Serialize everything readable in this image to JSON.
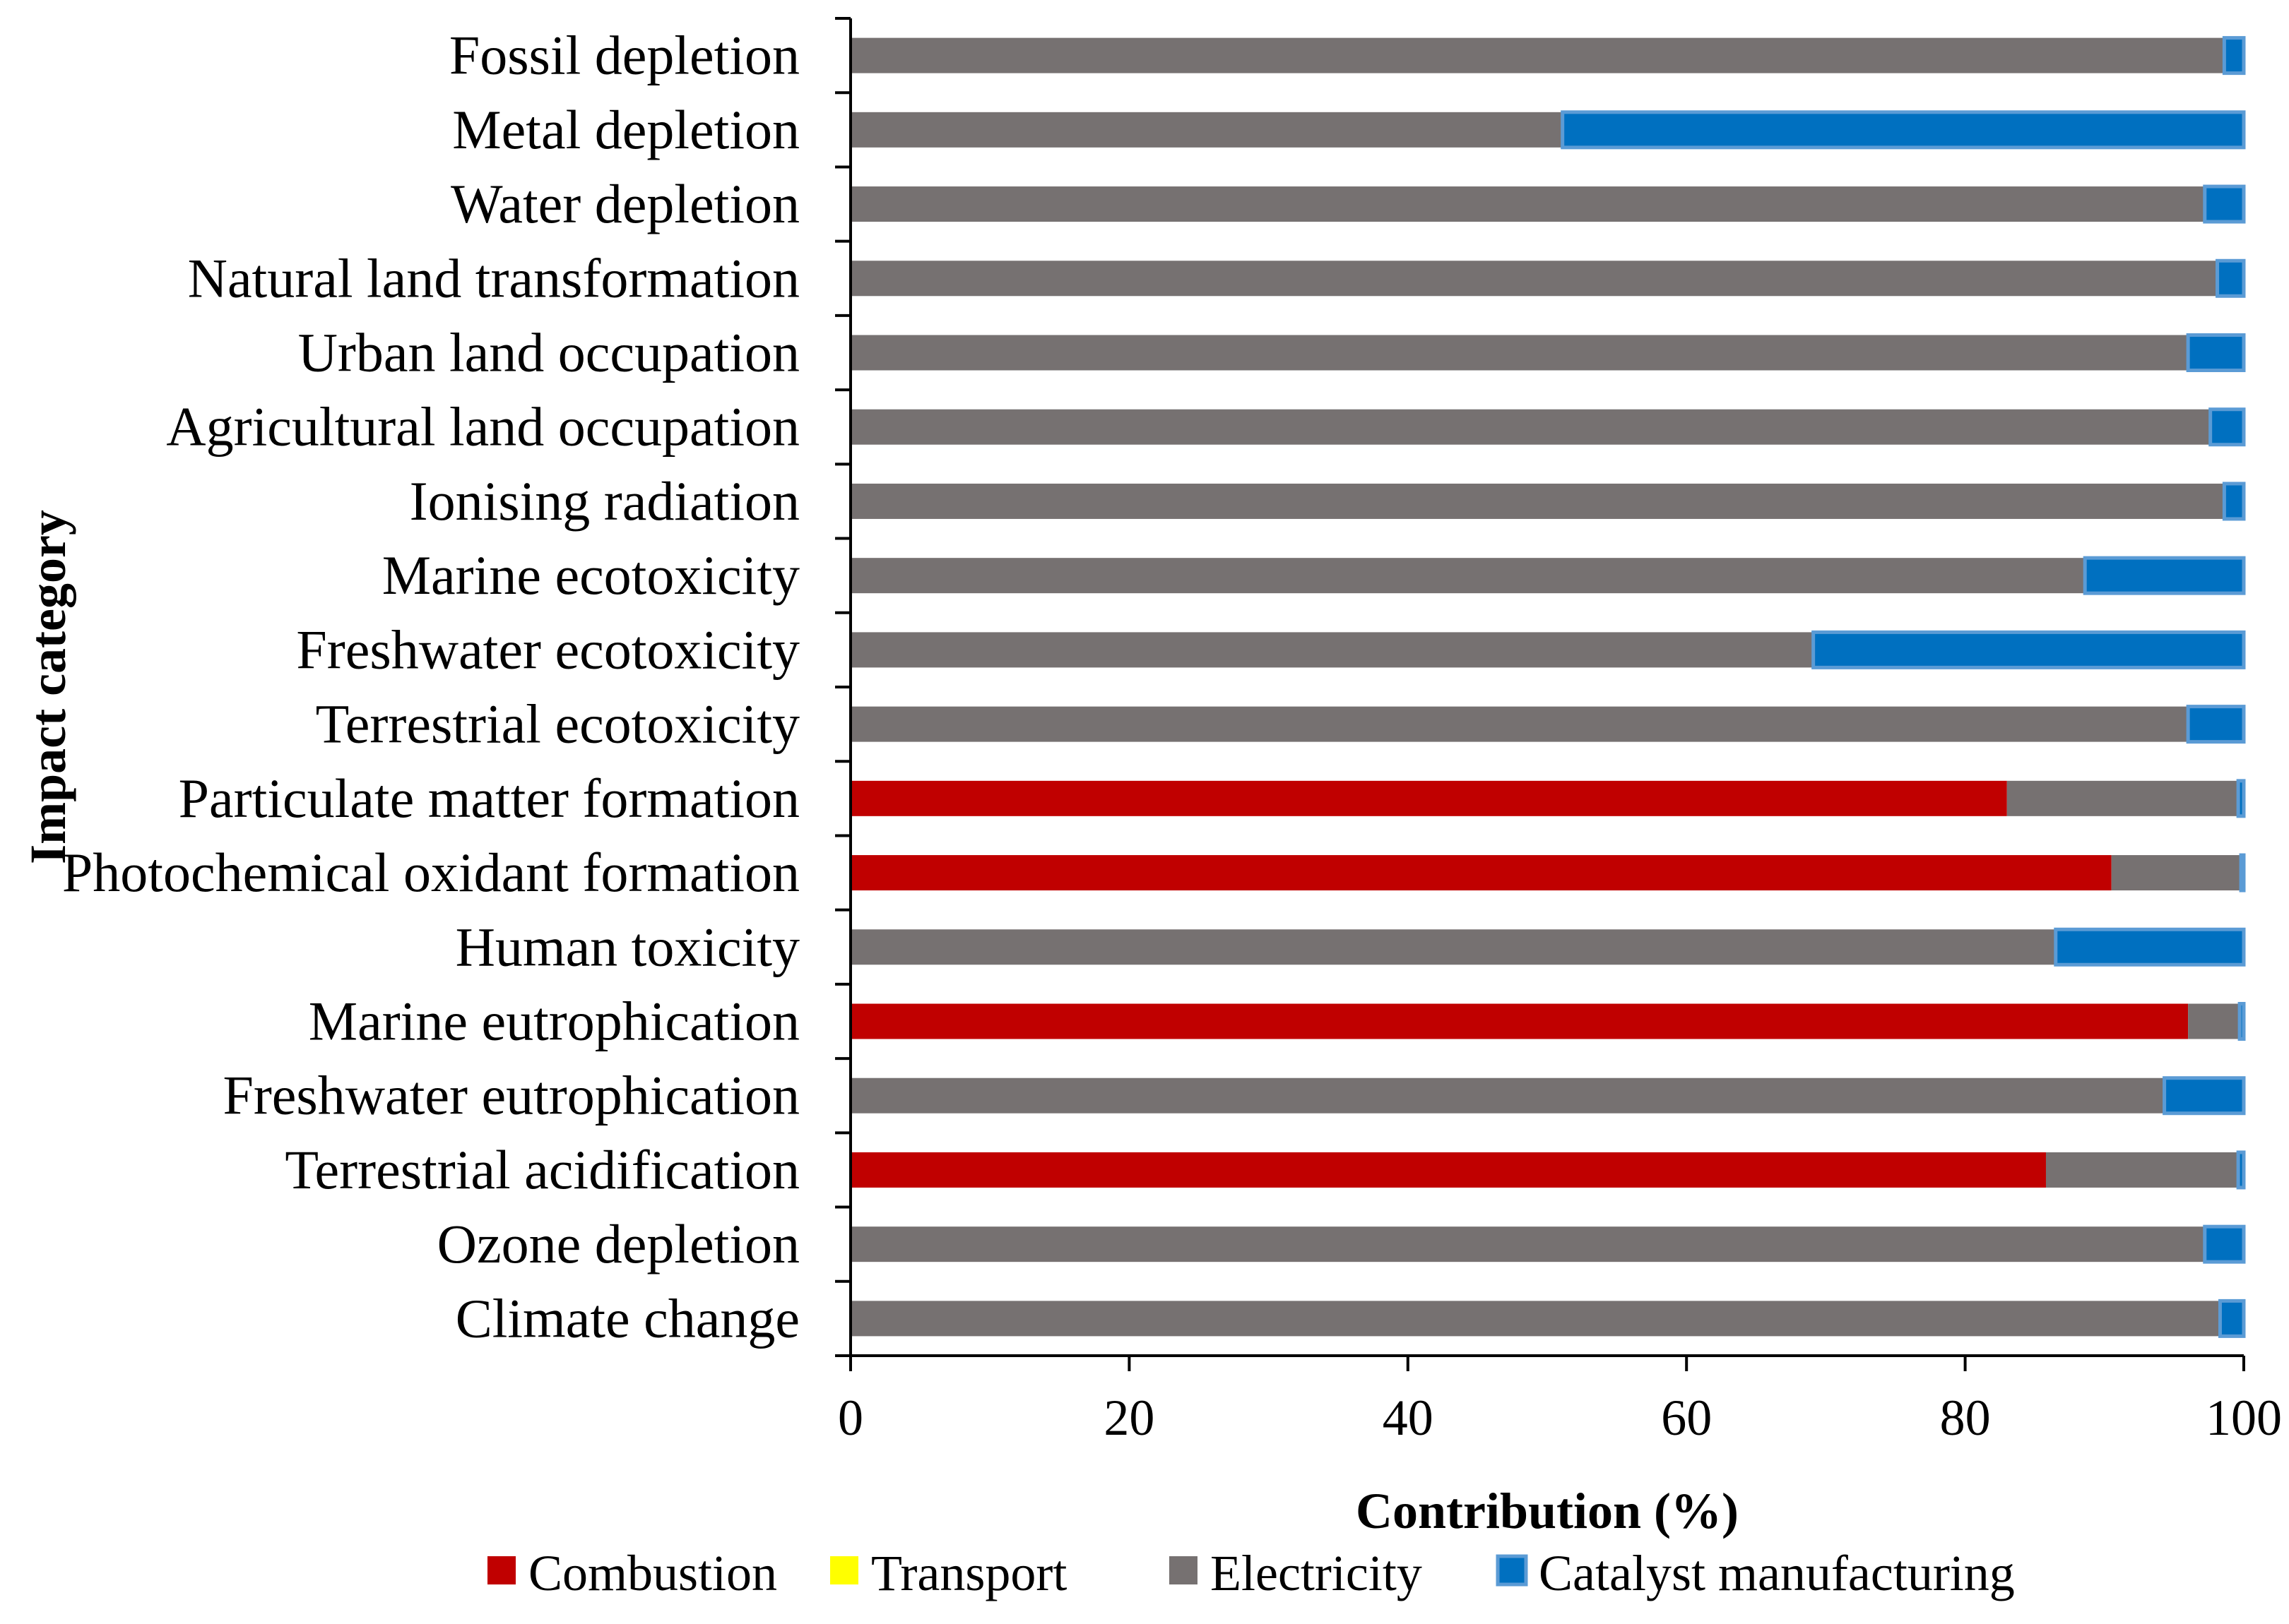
{
  "chart_data": {
    "type": "bar",
    "orientation": "horizontal",
    "stacked": true,
    "title": "",
    "xlabel": "Contribution (%)",
    "ylabel": "Impact category",
    "xlim": [
      0,
      100
    ],
    "xticks": [
      "0",
      "20",
      "40",
      "60",
      "80",
      "100"
    ],
    "grid": false,
    "legend_position": "bottom",
    "categories": [
      "Fossil depletion",
      "Metal depletion",
      "Water depletion",
      "Natural land transformation",
      "Urban land occupation",
      "Agricultural land occupation",
      "Ionising radiation",
      "Marine ecotoxicity",
      "Freshwater ecotoxicity",
      "Terrestrial ecotoxicity",
      "Particulate matter formation",
      "Photochemical oxidant formation",
      "Human toxicity",
      "Marine eutrophication",
      "Freshwater eutrophication",
      "Terrestrial acidification",
      "Ozone depletion",
      "Climate change"
    ],
    "series": [
      {
        "name": "Combustion",
        "color": "#c00000",
        "values": [
          0,
          0,
          0,
          0,
          0,
          0,
          0,
          0,
          0,
          0,
          83.0,
          90.5,
          0,
          96.0,
          0,
          85.8,
          0,
          0
        ]
      },
      {
        "name": "Transport",
        "color": "#ffff00",
        "values": [
          0,
          0,
          0,
          0,
          0,
          0,
          0,
          0,
          0,
          0,
          0,
          0,
          0,
          0,
          0,
          0,
          0,
          0
        ]
      },
      {
        "name": "Electricity",
        "color": "#767171",
        "values": [
          98.6,
          51.1,
          97.2,
          98.1,
          96.0,
          97.6,
          98.6,
          88.6,
          69.1,
          96.0,
          16.6,
          9.3,
          86.5,
          3.7,
          94.3,
          13.8,
          97.2,
          98.3
        ]
      },
      {
        "name": "Catalyst manufacturing",
        "color": "#0070c0",
        "values": [
          1.4,
          48.9,
          2.8,
          1.9,
          4.0,
          2.4,
          1.4,
          11.4,
          30.9,
          4.0,
          0.4,
          0.2,
          13.5,
          0.3,
          5.7,
          0.4,
          2.8,
          1.7
        ]
      }
    ]
  }
}
